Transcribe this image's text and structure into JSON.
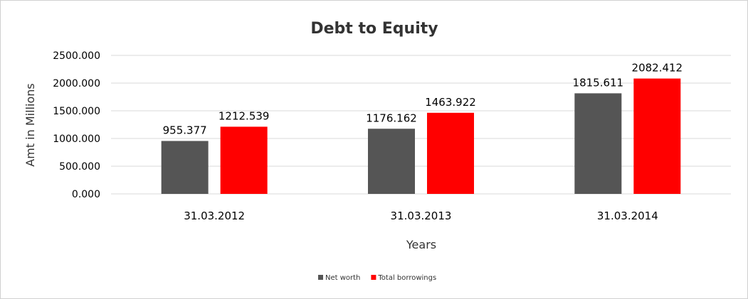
{
  "chart_data": {
    "type": "bar",
    "title": "Debt to Equity",
    "xlabel": "Years",
    "ylabel": "Amt in Millions",
    "categories": [
      "31.03.2012",
      "31.03.2013",
      "31.03.2014"
    ],
    "series": [
      {
        "name": "Net worth",
        "color": "#555555",
        "values": [
          955.377,
          1176.162,
          1815.611
        ],
        "labels": [
          "955.377",
          "1176.162",
          "1815.611"
        ]
      },
      {
        "name": "Total borrowings",
        "color": "#ff0000",
        "values": [
          1212.539,
          1463.922,
          2082.412
        ],
        "labels": [
          "1212.539",
          "1463.922",
          "2082.412"
        ]
      }
    ],
    "yticks": [
      "0.000",
      "500.000",
      "1000.000",
      "1500.000",
      "2000.000",
      "2500.000"
    ],
    "ylim": [
      0,
      2500
    ],
    "grid": true,
    "legend": "bottom"
  }
}
